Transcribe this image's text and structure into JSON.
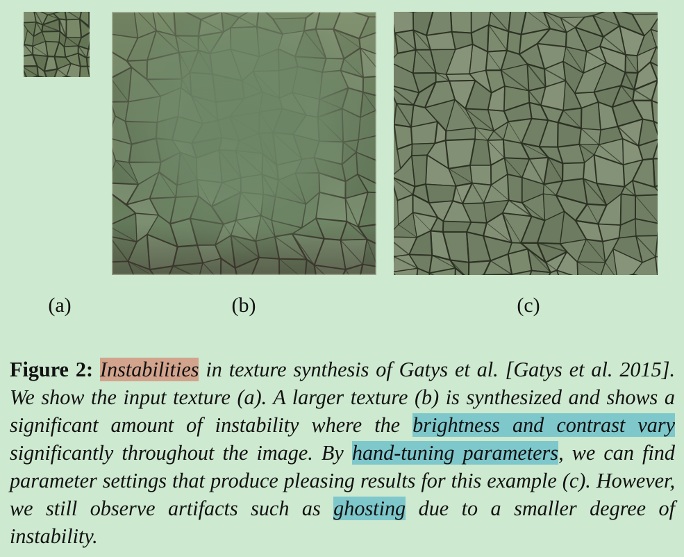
{
  "panels": [
    {
      "id": "a",
      "label": "(a)",
      "role": "input texture",
      "base_color": "#6e7f5d",
      "crack_color": "#2f3526"
    },
    {
      "id": "b",
      "label": "(b)",
      "role": "synthesized larger texture with instability",
      "base_color": "#6d8463",
      "crack_color": "#3b3a2e"
    },
    {
      "id": "c",
      "label": "(c)",
      "role": "hand-tuned synthesized texture",
      "base_color": "#77866a",
      "crack_color": "#2b3022"
    }
  ],
  "caption": {
    "figure_label": "Figure 2:",
    "segments": [
      {
        "text": "Instabilities",
        "highlight": "#d3a48d"
      },
      {
        "text": " in texture synthesis of Gatys et al. [Gatys et al. 2015]. We show the input texture (a). A larger texture (b) is synthesized and shows a significant amount of instability where the "
      },
      {
        "text": "brightness and contrast vary",
        "highlight": "#7ec8cc"
      },
      {
        "text": " significantly throughout the image. By "
      },
      {
        "text": "hand-tuning parameters",
        "highlight": "#7ec8cc"
      },
      {
        "text": ", we can find parameter settings that produce pleasing results for this example (c). However, we still observe artifacts such as "
      },
      {
        "text": "ghosting",
        "highlight": "#7ec8cc"
      },
      {
        "text": " due to a smaller degree of instability."
      }
    ]
  },
  "colors": {
    "background": "#cde9cf",
    "highlight_red": "#d3a48d",
    "highlight_blue": "#7ec8cc"
  }
}
